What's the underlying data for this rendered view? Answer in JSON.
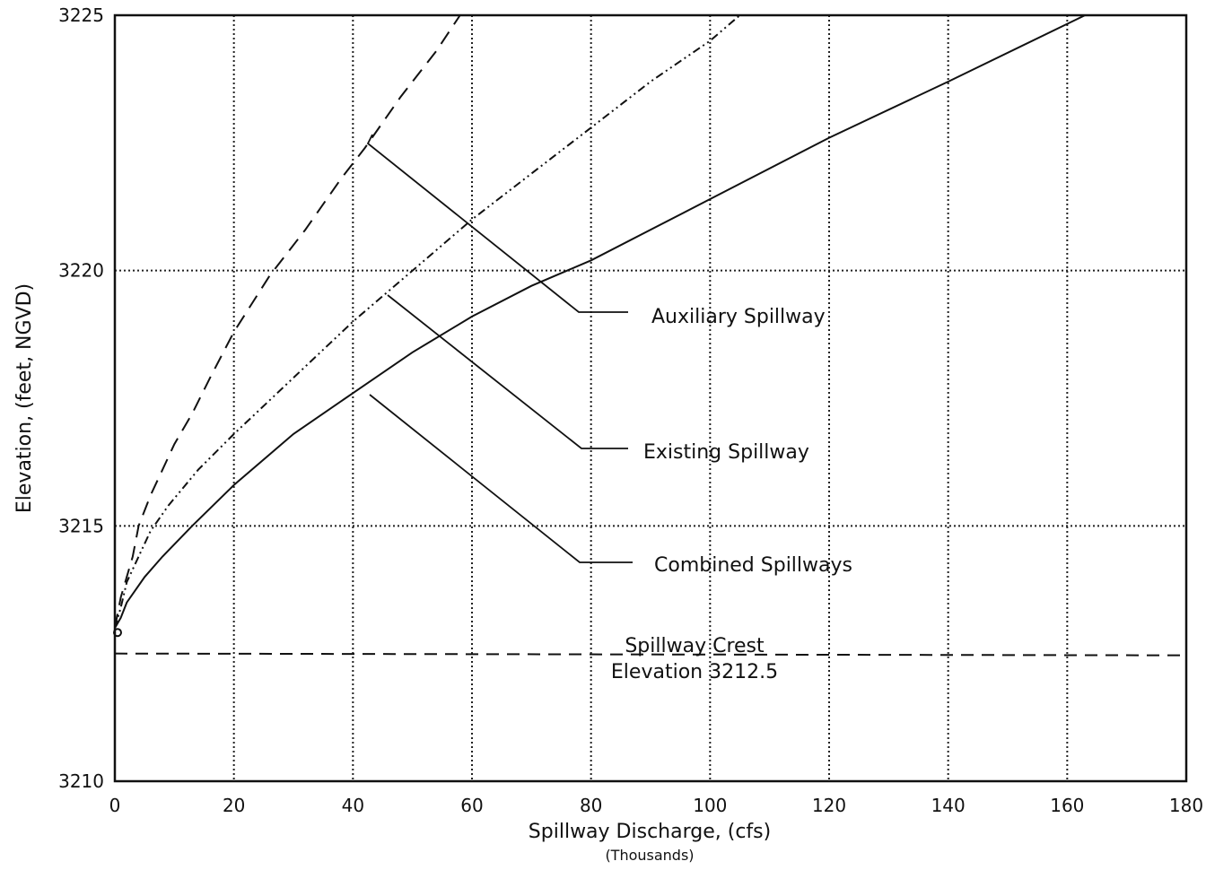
{
  "chart_data": {
    "type": "line",
    "xlabel": "Spillway Discharge, (cfs)",
    "xlabel_sub": "(Thousands)",
    "ylabel": "Elevation, (feet, NGVD)",
    "xlim": [
      0,
      180
    ],
    "ylim": [
      3210,
      3225
    ],
    "x_ticks": [
      0,
      20,
      40,
      60,
      80,
      100,
      120,
      140,
      160,
      180
    ],
    "y_ticks": [
      3210,
      3215,
      3220,
      3225
    ],
    "grid": true,
    "series": [
      {
        "name": "Auxiliary Spillway",
        "style": "dashed",
        "x": [
          0,
          1,
          3,
          4,
          6,
          8,
          10,
          13,
          16,
          20,
          26,
          32,
          38,
          42,
          48,
          54,
          58
        ],
        "y": [
          3213.0,
          3213.6,
          3214.4,
          3215.0,
          3215.6,
          3216.1,
          3216.6,
          3217.2,
          3217.9,
          3218.8,
          3219.9,
          3220.8,
          3221.8,
          3222.4,
          3223.4,
          3224.3,
          3225.0
        ]
      },
      {
        "name": "Existing Spillway",
        "style": "dash-dot",
        "x": [
          0,
          1,
          2,
          4,
          6,
          9,
          14,
          20,
          30,
          40,
          50,
          60,
          70,
          80,
          90,
          100,
          105
        ],
        "y": [
          3213.0,
          3213.4,
          3213.9,
          3214.4,
          3214.9,
          3215.4,
          3216.1,
          3216.8,
          3217.9,
          3219.0,
          3220.0,
          3221.0,
          3221.9,
          3222.8,
          3223.7,
          3224.5,
          3225.0
        ]
      },
      {
        "name": "Combined Spillways",
        "style": "solid",
        "x": [
          0,
          1,
          2,
          5,
          8,
          13,
          20,
          30,
          40,
          50,
          60,
          70,
          80,
          100,
          120,
          140,
          163
        ],
        "y": [
          3213.0,
          3213.2,
          3213.5,
          3214.0,
          3214.4,
          3215.0,
          3215.8,
          3216.8,
          3217.6,
          3218.4,
          3219.1,
          3219.7,
          3220.2,
          3221.4,
          3222.6,
          3223.7,
          3225.0
        ]
      }
    ],
    "reference_line": {
      "y": 3212.5,
      "style": "dashed"
    },
    "annotations": {
      "auxiliary": "Auxiliary Spillway",
      "existing": "Existing Spillway",
      "combined": "Combined Spillways",
      "crest_line1": "Spillway Crest",
      "crest_line2": "Elevation 3212.5"
    }
  }
}
